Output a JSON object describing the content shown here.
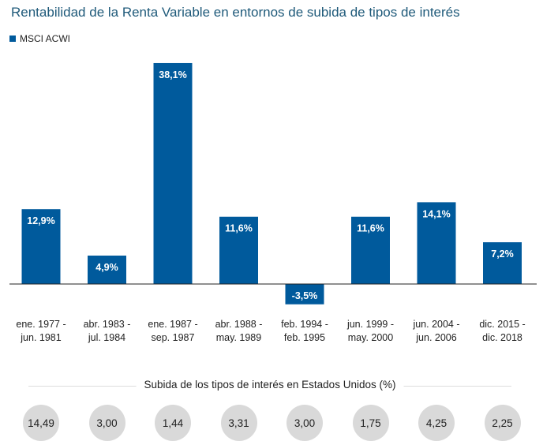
{
  "title": "Rentabilidad de la Renta Variable en entornos de subida de tipos de interés",
  "legend": {
    "label": "MSCI ACWI",
    "color": "#005a9c"
  },
  "chart_data": {
    "type": "bar",
    "title": "Rentabilidad de la Renta Variable en entornos de subida de tipos de interés",
    "legend_position": "top-left",
    "grid": false,
    "ylim": [
      -4,
      39
    ],
    "categories": [
      [
        "ene. 1977 -",
        "jun. 1981"
      ],
      [
        "abr. 1983 -",
        "jul. 1984"
      ],
      [
        "ene. 1987 -",
        "sep. 1987"
      ],
      [
        "abr. 1988 -",
        "may. 1989"
      ],
      [
        "feb. 1994 -",
        "feb. 1995"
      ],
      [
        "jun. 1999 -",
        "may. 2000"
      ],
      [
        "jun. 2004 -",
        "jun. 2006"
      ],
      [
        "dic. 2015 -",
        "dic. 2018"
      ]
    ],
    "series": [
      {
        "name": "MSCI ACWI",
        "color": "#005a9c",
        "values": [
          12.9,
          4.9,
          38.1,
          11.6,
          -3.5,
          11.6,
          14.1,
          7.2
        ],
        "labels": [
          "12,9%",
          "4,9%",
          "38,1%",
          "11,6%",
          "-3,5%",
          "11,6%",
          "14,1%",
          "7,2%"
        ]
      }
    ]
  },
  "rates": {
    "title": "Subida de los tipos de interés en Estados Unidos (%)",
    "values": [
      "14,49",
      "3,00",
      "1,44",
      "3,31",
      "3,00",
      "1,75",
      "4,25",
      "2,25"
    ]
  }
}
